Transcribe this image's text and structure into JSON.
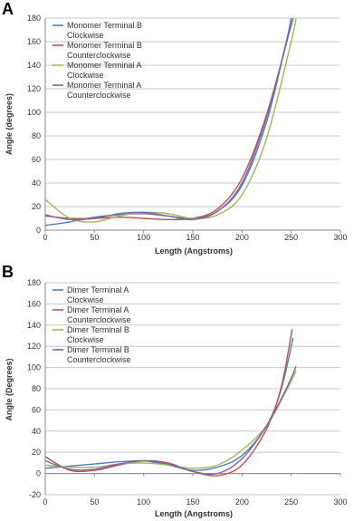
{
  "colors": {
    "blue": "#4f81bd",
    "red": "#c0504d",
    "green": "#9bbb59",
    "purple": "#8064a2"
  },
  "chart_data": [
    {
      "panel_label": "A",
      "type": "line",
      "xlabel": "Length (Angstroms)",
      "ylabel": "Angle (degrees)",
      "xlim": [
        0,
        300
      ],
      "ylim": [
        0,
        180
      ],
      "x_ticks": [
        0,
        50,
        100,
        150,
        200,
        250,
        300
      ],
      "y_ticks": [
        0,
        20,
        40,
        60,
        80,
        100,
        120,
        140,
        160,
        180
      ],
      "grid": true,
      "legend_position": "top-left",
      "series": [
        {
          "name": "Monomer Terminal B Clockwise",
          "legend_lines": [
            "Monomer Terminal B",
            "Clockwise"
          ],
          "color": "#4f81bd",
          "x": [
            0,
            25,
            50,
            75,
            100,
            125,
            150,
            175,
            200,
            225,
            245,
            250
          ],
          "y": [
            4,
            7,
            11,
            13,
            14,
            12,
            10,
            16,
            38,
            92,
            160,
            180
          ]
        },
        {
          "name": "Monomer Terminal B Counterclockwise",
          "legend_lines": [
            "Monomer Terminal B",
            "Counterclockwise"
          ],
          "color": "#c0504d",
          "x": [
            0,
            25,
            50,
            75,
            100,
            125,
            150,
            175,
            200,
            225,
            248,
            252
          ],
          "y": [
            12,
            10,
            10,
            11,
            10,
            9,
            10,
            18,
            44,
            98,
            168,
            180
          ]
        },
        {
          "name": "Monomer Terminal A Clockwise",
          "legend_lines": [
            "Monomer Terminal A",
            "Clockwise"
          ],
          "color": "#9bbb59",
          "x": [
            0,
            25,
            50,
            75,
            100,
            125,
            150,
            175,
            200,
            225,
            250,
            255
          ],
          "y": [
            26,
            10,
            7,
            12,
            15,
            14,
            10,
            13,
            30,
            78,
            160,
            180
          ]
        },
        {
          "name": "Monomer Terminal A Counterclockwise",
          "legend_lines": [
            "Monomer Terminal A",
            "Counterclockwise"
          ],
          "color": "#8064a2",
          "x": [
            0,
            25,
            50,
            75,
            100,
            125,
            150,
            175,
            200,
            225,
            248,
            252
          ],
          "y": [
            13,
            9,
            10,
            14,
            15,
            12,
            9,
            16,
            40,
            96,
            168,
            180
          ]
        }
      ]
    },
    {
      "panel_label": "B",
      "type": "line",
      "xlabel": "Length (Angstroms)",
      "ylabel": "Angle (Degrees)",
      "xlim": [
        0,
        300
      ],
      "ylim": [
        -20,
        180
      ],
      "x_ticks": [
        0,
        50,
        100,
        150,
        200,
        250,
        300
      ],
      "y_ticks": [
        -20,
        0,
        20,
        40,
        60,
        80,
        100,
        120,
        140,
        160,
        180
      ],
      "grid": true,
      "legend_position": "top-left",
      "series": [
        {
          "name": "Dimer Terminal A Clockwise",
          "legend_lines": [
            "Dimer Terminal A",
            "Clockwise"
          ],
          "color": "#4f81bd",
          "x": [
            0,
            25,
            50,
            75,
            100,
            125,
            150,
            175,
            200,
            225,
            240,
            252
          ],
          "y": [
            5,
            7,
            9,
            11,
            12,
            8,
            3,
            6,
            17,
            45,
            80,
            128
          ]
        },
        {
          "name": "Dimer Terminal A Counterclockwise",
          "legend_lines": [
            "Dimer Terminal A",
            "Counterclockwise"
          ],
          "color": "#c0504d",
          "x": [
            0,
            25,
            50,
            75,
            100,
            125,
            150,
            175,
            200,
            225,
            240,
            251
          ],
          "y": [
            16,
            3,
            3,
            8,
            12,
            10,
            2,
            -2,
            8,
            42,
            82,
            136
          ]
        },
        {
          "name": "Dimer Terminal B Clockwise",
          "legend_lines": [
            "Dimer Terminal B",
            "Clockwise"
          ],
          "color": "#9bbb59",
          "x": [
            0,
            25,
            50,
            75,
            100,
            125,
            150,
            175,
            200,
            225,
            245,
            255
          ],
          "y": [
            8,
            6,
            6,
            9,
            10,
            8,
            5,
            8,
            22,
            45,
            78,
            97
          ]
        },
        {
          "name": "Dimer Terminal B Counterclockwise",
          "legend_lines": [
            "Dimer Terminal B",
            "Counterclockwise"
          ],
          "color": "#8064a2",
          "x": [
            0,
            25,
            50,
            75,
            100,
            125,
            150,
            175,
            200,
            225,
            245,
            255
          ],
          "y": [
            12,
            4,
            4,
            9,
            12,
            9,
            2,
            0,
            14,
            45,
            80,
            101
          ]
        }
      ]
    }
  ]
}
